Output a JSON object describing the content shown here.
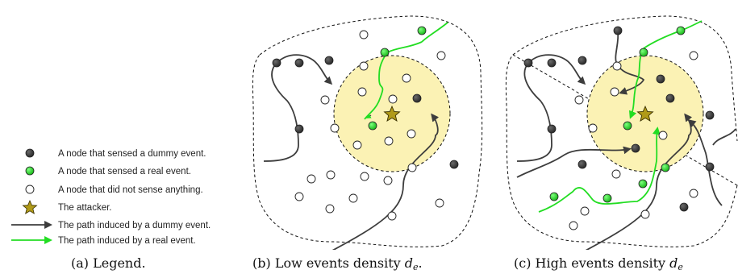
{
  "colors": {
    "dummy_node": "#3d3d3d",
    "real_node": "#22cc22",
    "empty_node": "#ffffff",
    "attacker_star": "#b09a18",
    "dummy_path": "#3d3d3d",
    "real_path": "#22dd22",
    "attacker_zone": "#fbf2b4"
  },
  "legend": {
    "items": [
      {
        "icon": "dark-node-icon",
        "label": "A node that sensed a dummy event."
      },
      {
        "icon": "green-node-icon",
        "label": "A node that sensed a real event."
      },
      {
        "icon": "white-node-icon",
        "label": "A node that did not sense anything."
      },
      {
        "icon": "star-icon",
        "label": "The attacker."
      },
      {
        "icon": "dark-arrow-icon",
        "label": "The path induced by a dummy event."
      },
      {
        "icon": "green-arrow-icon",
        "label": "The path induced by a real event."
      }
    ]
  },
  "captions": {
    "a": {
      "text": "(a) Legend."
    },
    "b": {
      "prefix": "(b) Low events density ",
      "var": "d",
      "sub": "e",
      "suffix": "."
    },
    "c": {
      "prefix": "(c) High events density ",
      "var": "d",
      "sub": "e",
      "suffix": ""
    }
  }
}
